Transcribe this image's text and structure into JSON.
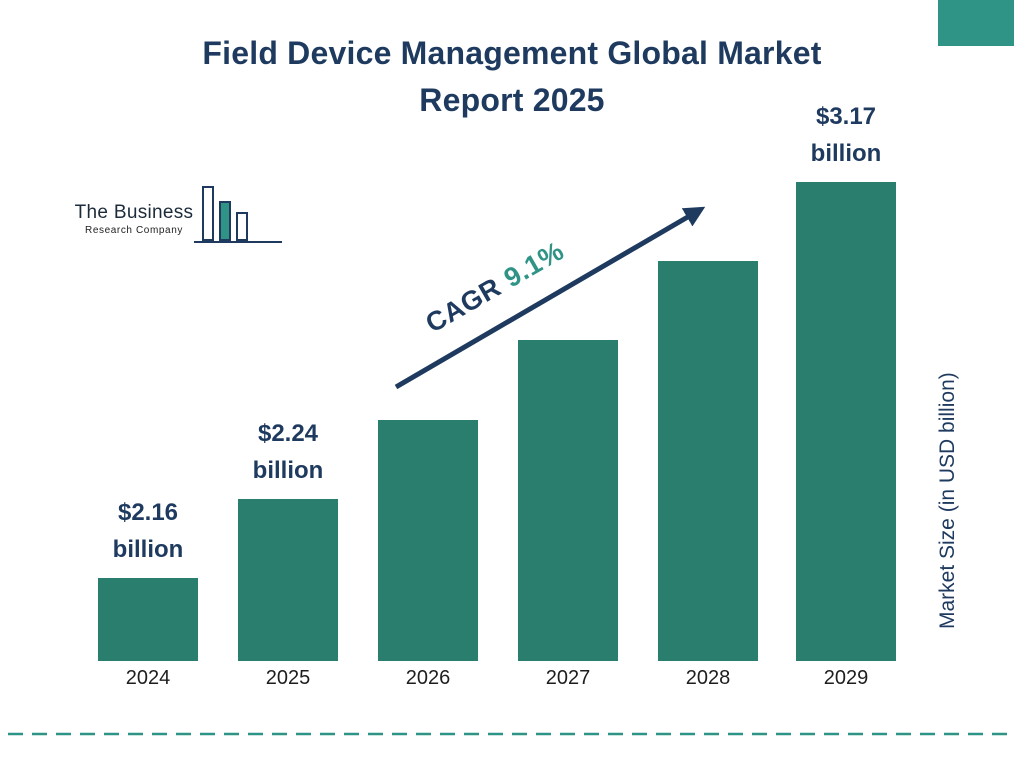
{
  "title": {
    "line1": "Field Device Management Global Market",
    "line2": "Report 2025"
  },
  "logo": {
    "name_line1": "The Business",
    "name_line2": "Research Company"
  },
  "cagr": {
    "label": "CAGR",
    "value": "9.1%"
  },
  "y_axis_label": "Market Size (in USD billion)",
  "colors": {
    "bar": "#2a7e6e",
    "navy": "#1e3a5f",
    "accent": "#2f9486"
  },
  "chart_data": {
    "type": "bar",
    "title": "Field Device Management Global Market Report 2025",
    "categories": [
      "2024",
      "2025",
      "2026",
      "2027",
      "2028",
      "2029"
    ],
    "values": [
      2.16,
      2.24,
      2.44,
      2.67,
      2.91,
      3.17
    ],
    "unit": "USD billion",
    "ylabel": "Market Size (in USD billion)",
    "cagr_pct": 9.1,
    "legend": "none",
    "grid": "off",
    "bar_labels": [
      {
        "category": "2024",
        "line1": "$2.16",
        "line2": "billion"
      },
      {
        "category": "2025",
        "line1": "$2.24",
        "line2": "billion"
      },
      {
        "category": "2029",
        "line1": "$3.17",
        "line2": "billion"
      }
    ]
  }
}
